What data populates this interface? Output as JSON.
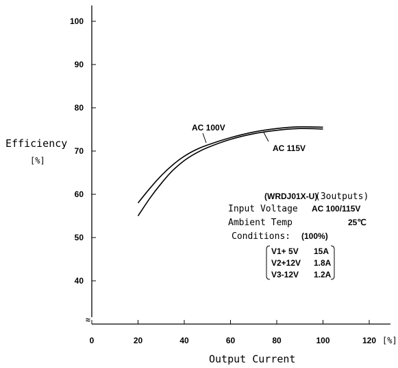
{
  "chart_data": {
    "type": "line",
    "xlabel": "Output Current",
    "xunit": "[%]",
    "ylabel": "Efficiency",
    "yunit": "[%]",
    "xlim": [
      0,
      120
    ],
    "ylim": [
      31,
      104
    ],
    "x_ticks": [
      "0",
      "20",
      "40",
      "60",
      "80",
      "100",
      "120"
    ],
    "y_ticks": [
      "40",
      "50",
      "60",
      "70",
      "80",
      "90",
      "100"
    ],
    "axis_break": "≈",
    "grid": false,
    "series": [
      {
        "name": "AC 100V",
        "x": [
          20,
          25,
          30,
          35,
          40,
          45,
          50,
          60,
          70,
          80,
          90,
          100
        ],
        "y": [
          58,
          61.3,
          64.3,
          66.8,
          68.8,
          70.3,
          71.4,
          73.1,
          74.4,
          75.2,
          75.6,
          75.5
        ]
      },
      {
        "name": "AC 115V",
        "x": [
          20,
          25,
          30,
          35,
          40,
          45,
          50,
          60,
          70,
          80,
          90,
          100
        ],
        "y": [
          55,
          59,
          62.5,
          65.5,
          67.8,
          69.5,
          70.8,
          72.7,
          74.0,
          74.8,
          75.2,
          75.1
        ]
      }
    ],
    "annotations": {
      "model": "(WRDJ01X-U)",
      "model_suffix": "(3outputs)",
      "input_voltage_label": "Input Voltage",
      "input_voltage_value": "AC 100/115V",
      "ambient_label": "Ambient Temp",
      "ambient_value": "25℃",
      "conditions_label": "Conditions:",
      "conditions_value": "(100%)",
      "outputs": [
        {
          "name": "V1+ 5V",
          "current": "15A"
        },
        {
          "name": "V2+12V",
          "current": "1.8A"
        },
        {
          "name": "V3-12V",
          "current": "1.2A"
        }
      ]
    }
  }
}
